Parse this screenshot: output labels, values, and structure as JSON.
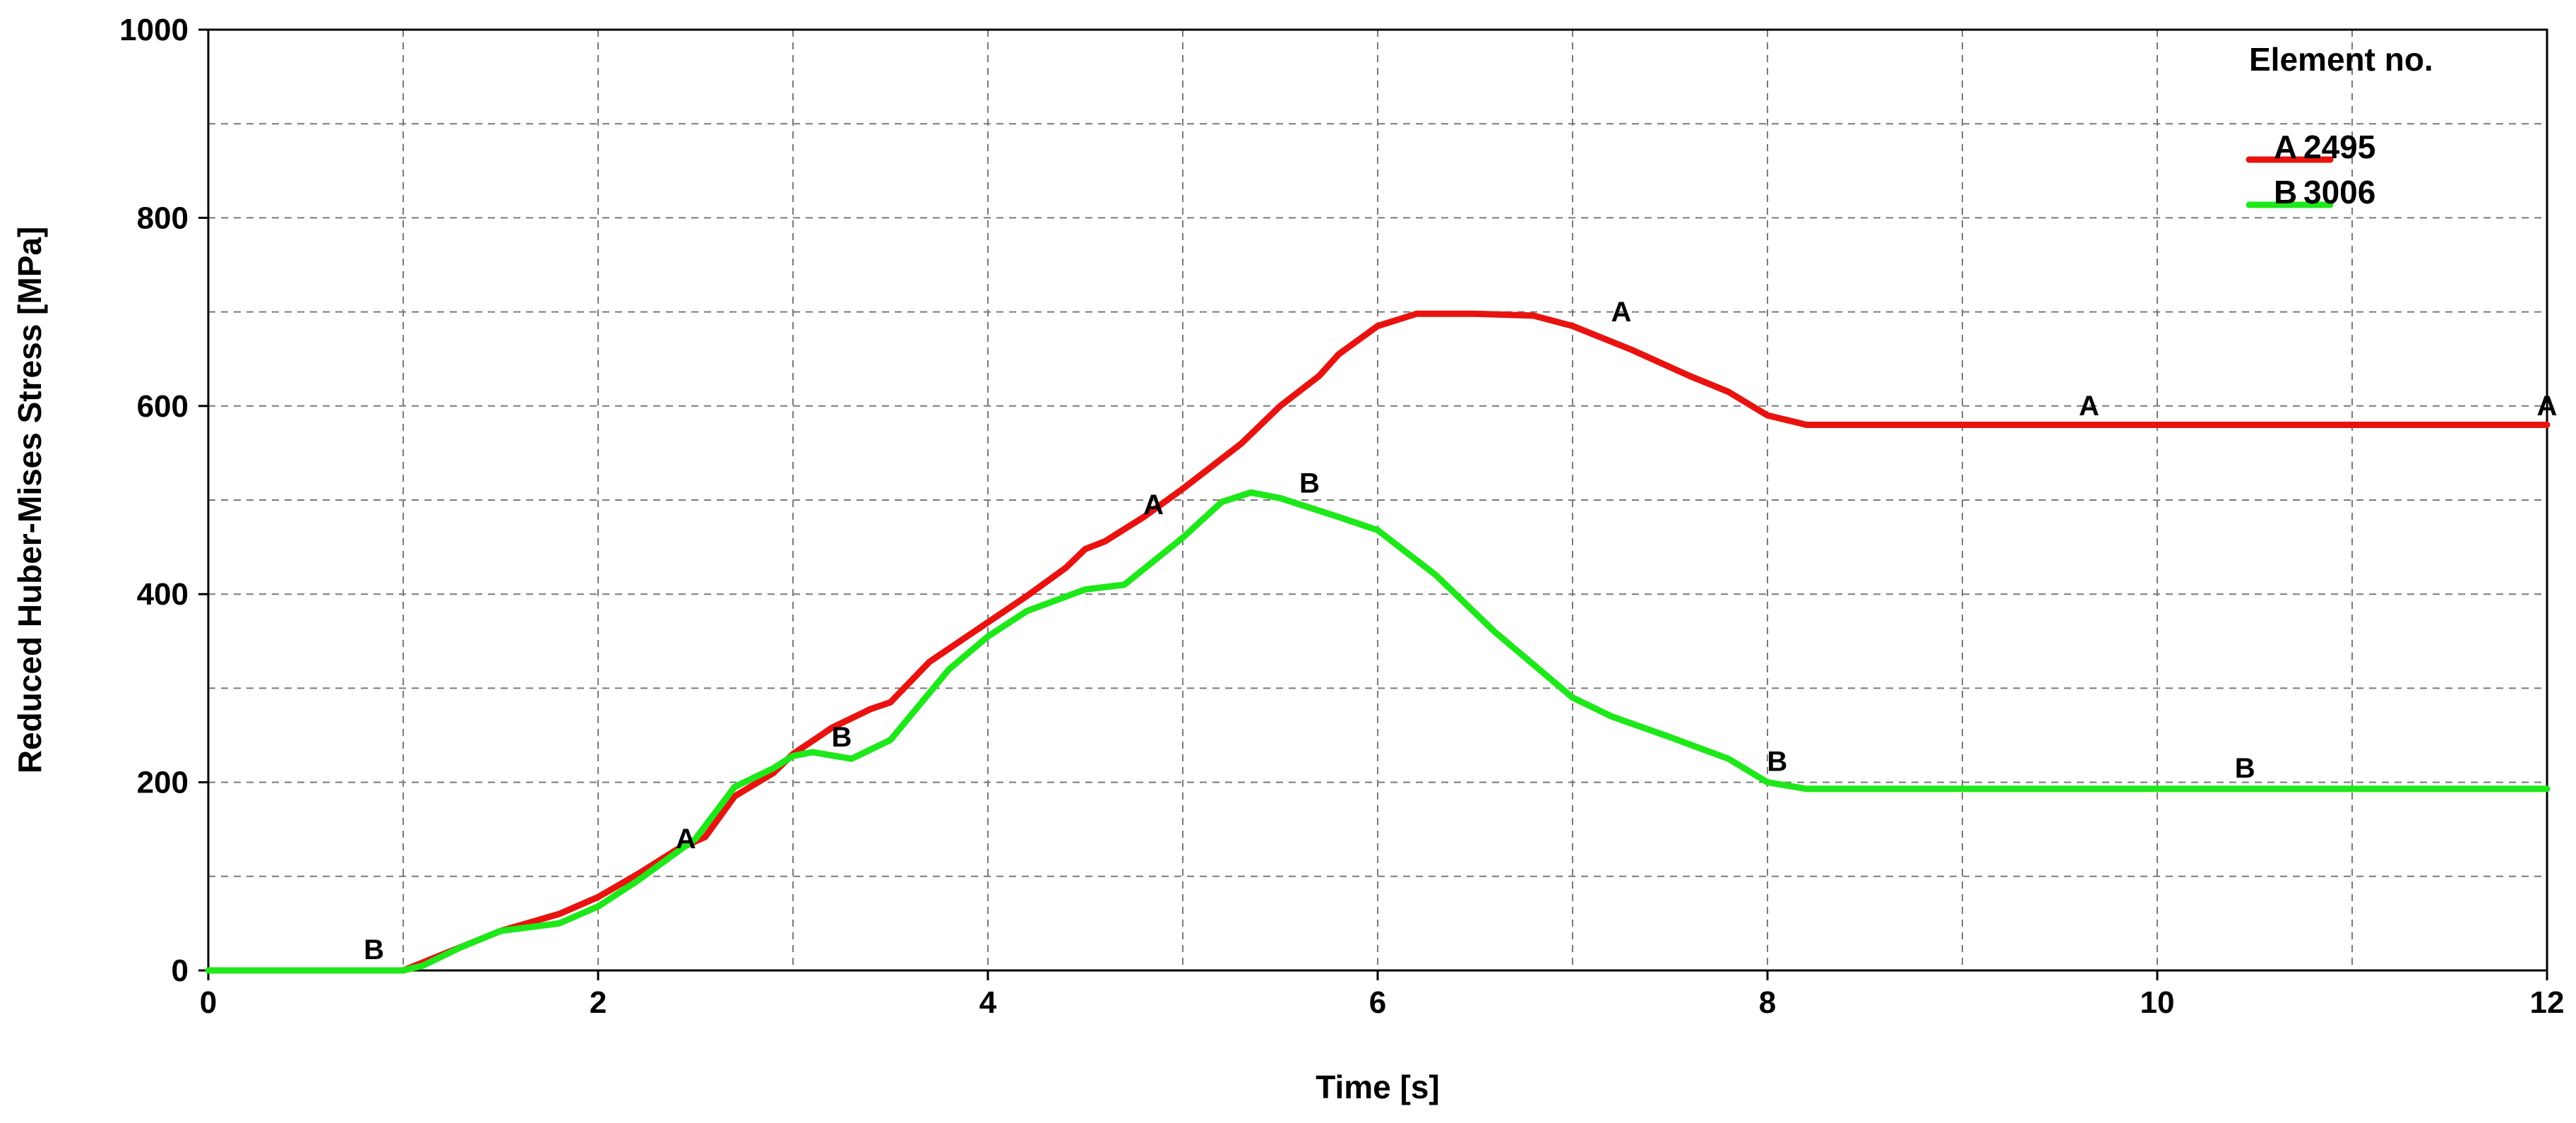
{
  "chart_data": {
    "type": "line",
    "title": "",
    "xlabel": "Time [s]",
    "ylabel": "Reduced Huber-Mises Stress [MPa]",
    "xlim": [
      0,
      12
    ],
    "ylim": [
      0,
      1000
    ],
    "xticks": [
      0,
      2,
      4,
      6,
      8,
      10,
      12
    ],
    "yticks": [
      0,
      200,
      400,
      600,
      800,
      1000
    ],
    "grid": true,
    "legend": {
      "title": "Element no.",
      "placement": "top-right",
      "entries": [
        {
          "marker": "A",
          "label": "2495"
        },
        {
          "marker": "B",
          "label": "3006"
        }
      ]
    },
    "series": [
      {
        "name": "2495",
        "marker": "A",
        "color": "#e8130f",
        "x": [
          0,
          1.0,
          1.5,
          1.8,
          2.0,
          2.2,
          2.4,
          2.55,
          2.7,
          2.9,
          3.0,
          3.2,
          3.4,
          3.5,
          3.7,
          4.0,
          4.2,
          4.4,
          4.5,
          4.6,
          4.8,
          5.0,
          5.3,
          5.5,
          5.7,
          5.8,
          6.0,
          6.2,
          6.5,
          6.8,
          7.0,
          7.3,
          7.6,
          7.8,
          8.0,
          8.2,
          9.0,
          10.0,
          11.0,
          12.0
        ],
        "y": [
          0,
          0,
          42,
          60,
          78,
          102,
          128,
          142,
          185,
          210,
          230,
          258,
          278,
          285,
          328,
          370,
          398,
          428,
          448,
          456,
          482,
          512,
          560,
          600,
          632,
          655,
          685,
          698,
          698,
          696,
          685,
          660,
          632,
          615,
          590,
          580,
          580,
          580,
          580,
          580
        ],
        "point_labels": [
          {
            "x": 2.45,
            "y": 130,
            "text": "A"
          },
          {
            "x": 4.85,
            "y": 485,
            "text": "A"
          },
          {
            "x": 7.25,
            "y": 690,
            "text": "A"
          },
          {
            "x": 9.65,
            "y": 590,
            "text": "A"
          },
          {
            "x": 12.0,
            "y": 590,
            "text": "A"
          }
        ]
      },
      {
        "name": "3006",
        "marker": "B",
        "color": "#1ee81a",
        "x": [
          0,
          1.0,
          1.1,
          1.3,
          1.5,
          1.8,
          2.0,
          2.2,
          2.5,
          2.7,
          2.9,
          3.0,
          3.1,
          3.3,
          3.5,
          3.8,
          4.0,
          4.2,
          4.5,
          4.7,
          5.0,
          5.2,
          5.35,
          5.5,
          5.8,
          6.0,
          6.3,
          6.6,
          7.0,
          7.2,
          7.5,
          7.8,
          8.0,
          8.2,
          9.0,
          10.0,
          11.0,
          12.0
        ],
        "y": [
          0,
          0,
          5,
          25,
          42,
          50,
          68,
          95,
          140,
          195,
          215,
          228,
          232,
          225,
          245,
          320,
          355,
          382,
          405,
          410,
          460,
          498,
          508,
          502,
          482,
          468,
          420,
          360,
          290,
          270,
          248,
          225,
          200,
          193,
          193,
          193,
          193,
          193
        ],
        "point_labels": [
          {
            "x": 0.85,
            "y": 12,
            "text": "B"
          },
          {
            "x": 3.25,
            "y": 238,
            "text": "B"
          },
          {
            "x": 5.65,
            "y": 508,
            "text": "B"
          },
          {
            "x": 8.05,
            "y": 212,
            "text": "B"
          },
          {
            "x": 10.45,
            "y": 205,
            "text": "B"
          }
        ]
      }
    ]
  }
}
